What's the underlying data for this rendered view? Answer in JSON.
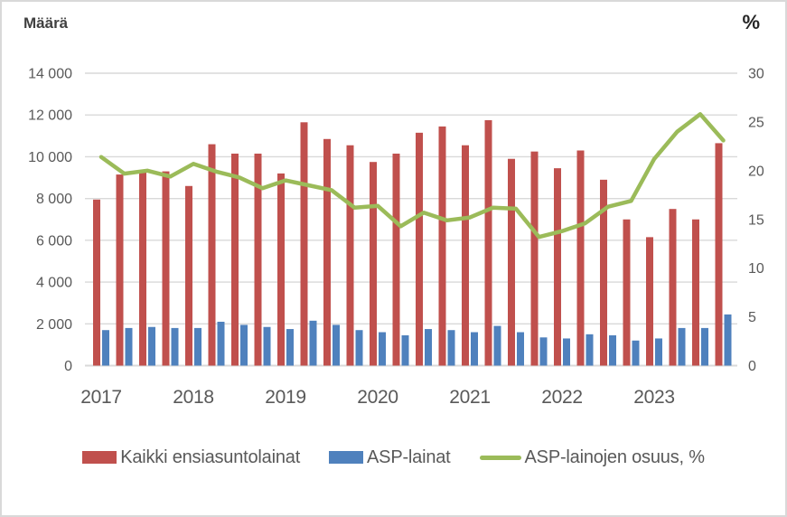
{
  "figure": {
    "left_axis_title": "Määrä",
    "right_axis_title": "%"
  },
  "chart_data": {
    "type": "combo-bar-line",
    "categories": [
      "2017Q1",
      "2017Q2",
      "2017Q3",
      "2017Q4",
      "2018Q1",
      "2018Q2",
      "2018Q3",
      "2018Q4",
      "2019Q1",
      "2019Q2",
      "2019Q3",
      "2019Q4",
      "2020Q1",
      "2020Q2",
      "2020Q3",
      "2020Q4",
      "2021Q1",
      "2021Q2",
      "2021Q3",
      "2021Q4",
      "2022Q1",
      "2022Q2",
      "2022Q3",
      "2022Q4",
      "2023Q1",
      "2023Q2",
      "2023Q3",
      "2023Q4"
    ],
    "x_axis": {
      "year_labels": [
        "2017",
        "2018",
        "2019",
        "2020",
        "2021",
        "2022",
        "2023"
      ],
      "label_every_n_categories": 4
    },
    "left_axis": {
      "title": "Määrä",
      "min": 0,
      "max": 14000,
      "tick_step": 2000,
      "tick_labels": [
        "14 000",
        "12 000",
        "10 000",
        "8 000",
        "6 000",
        "4 000",
        "2 000",
        "0"
      ]
    },
    "right_axis": {
      "title": "%",
      "min": 0,
      "max": 30,
      "tick_step": 5,
      "tick_labels": [
        "30",
        "25",
        "20",
        "15",
        "10",
        "5",
        "0"
      ]
    },
    "grid": "horizontal",
    "legend_position": "bottom",
    "series": [
      {
        "name": "Kaikki ensiasuntolainat",
        "type": "bar",
        "axis": "left",
        "color": "#c0504d",
        "values": [
          7950,
          9150,
          9250,
          9300,
          8600,
          10600,
          10150,
          10150,
          9200,
          11650,
          10850,
          10550,
          9750,
          10150,
          11150,
          11450,
          10550,
          11750,
          9900,
          10250,
          9450,
          10300,
          8900,
          7000,
          6150,
          7500,
          7000,
          10650
        ]
      },
      {
        "name": "ASP-lainat",
        "type": "bar",
        "axis": "left",
        "color": "#4f81bd",
        "values": [
          1700,
          1800,
          1850,
          1800,
          1800,
          2100,
          1950,
          1850,
          1750,
          2150,
          1950,
          1700,
          1600,
          1450,
          1750,
          1700,
          1600,
          1900,
          1600,
          1350,
          1300,
          1500,
          1450,
          1200,
          1300,
          1800,
          1800,
          2450
        ]
      },
      {
        "name": "ASP-lainojen osuus, %",
        "type": "line",
        "axis": "right",
        "color": "#9bbb59",
        "values": [
          21.4,
          19.7,
          20.0,
          19.4,
          20.7,
          19.9,
          19.3,
          18.2,
          19.0,
          18.5,
          18.0,
          16.2,
          16.4,
          14.3,
          15.7,
          14.9,
          15.2,
          16.2,
          16.1,
          13.2,
          13.8,
          14.6,
          16.3,
          16.9,
          21.2,
          24.0,
          25.8,
          23.1
        ]
      }
    ],
    "style": {
      "gridline_color": "#d9d9d9",
      "axis_line_color": "#d9d9d9",
      "tick_label_color": "#595959",
      "year_label_color": "#595959"
    }
  }
}
